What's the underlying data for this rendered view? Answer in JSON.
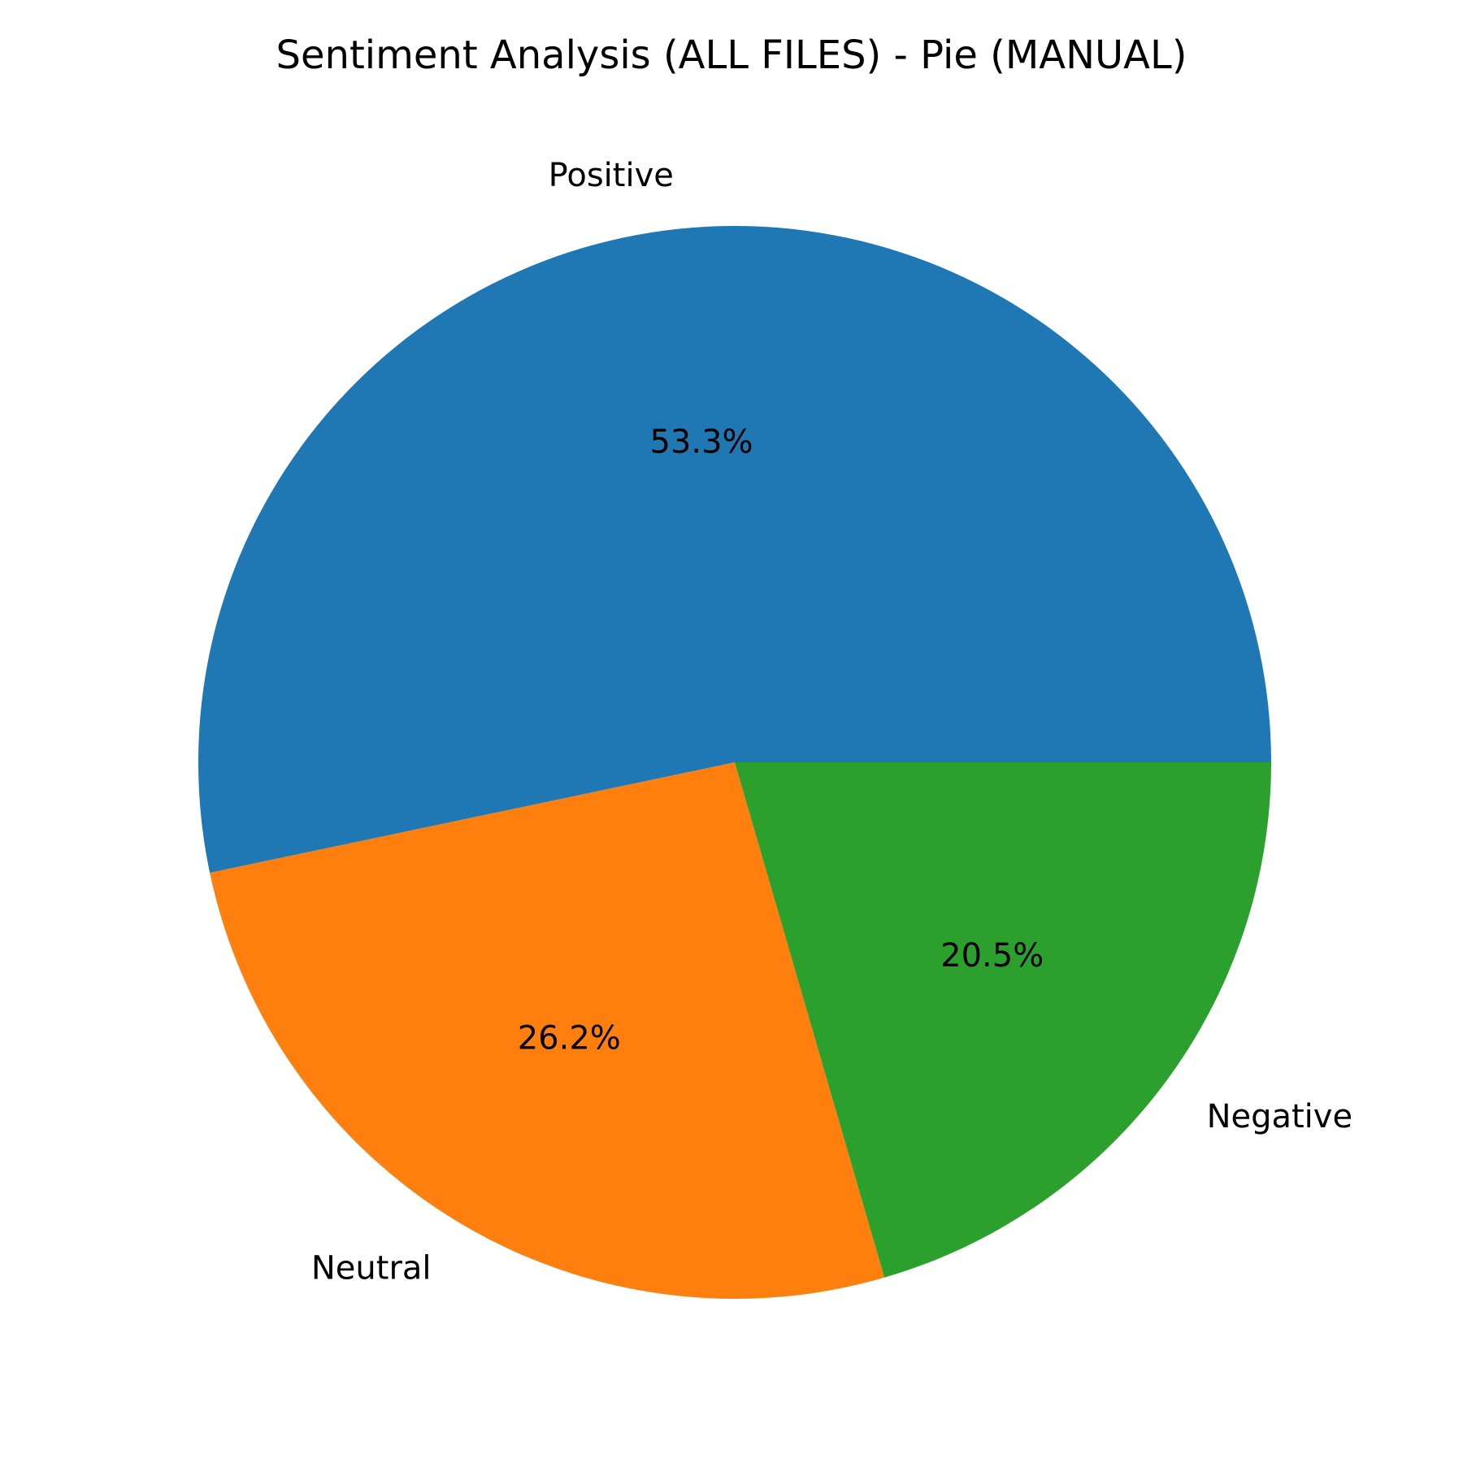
{
  "chart_data": {
    "type": "pie",
    "title": "Sentiment Analysis (ALL FILES) - Pie (MANUAL)",
    "categories": [
      "Positive",
      "Neutral",
      "Negative"
    ],
    "values": [
      53.3,
      26.2,
      20.5
    ],
    "value_labels": [
      "53.3%",
      "26.2%",
      "20.5%"
    ],
    "colors": [
      "#1f77b4",
      "#ff7f0e",
      "#2ca02c"
    ],
    "start_angle_deg": 0,
    "direction": "counterclockwise",
    "legend": "none"
  }
}
